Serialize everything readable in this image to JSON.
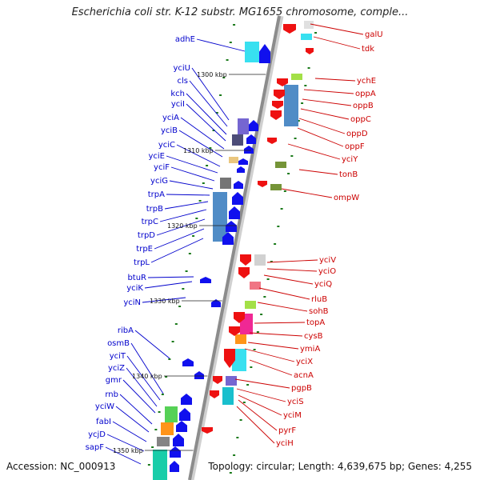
{
  "title": "Escherichia coli str. K-12 substr. MG1655 chromosome, comple...",
  "footer": {
    "accession": "Accession: NC_000913",
    "topology": "Topology: circular; Length: 4,639,675 bp; Genes: 4,255"
  },
  "colors": {
    "left_label": "#0000cc",
    "right_label": "#cc0000",
    "axis": "#888888",
    "tick": "#1a7a1a"
  },
  "kbp_marks": [
    "1300 kbp",
    "1310 kbp",
    "1320 kbp",
    "1330 kbp",
    "1340 kbp",
    "1350 kbp"
  ],
  "left_genes": [
    "adhE",
    "yciU",
    "cls",
    "kch",
    "yciI",
    "yciA",
    "yciB",
    "yciC",
    "yciE",
    "yciF",
    "yciG",
    "trpA",
    "trpB",
    "trpC",
    "trpD",
    "trpE",
    "trpL",
    "btuR",
    "yciK",
    "yciN",
    "ribA",
    "osmB",
    "yciT",
    "yciZ",
    "gmr",
    "rnb",
    "yciW",
    "fabI",
    "ycjD",
    "sapF"
  ],
  "right_genes": [
    "galU",
    "tdk",
    "ychE",
    "oppA",
    "oppB",
    "oppC",
    "oppD",
    "oppF",
    "yciY",
    "tonB",
    "ompW",
    "yciV",
    "yciO",
    "yciQ",
    "rluB",
    "sohB",
    "topA",
    "cysB",
    "ymiA",
    "yciX",
    "acnA",
    "pgpB",
    "yciS",
    "yciM",
    "pyrF",
    "yciH"
  ]
}
